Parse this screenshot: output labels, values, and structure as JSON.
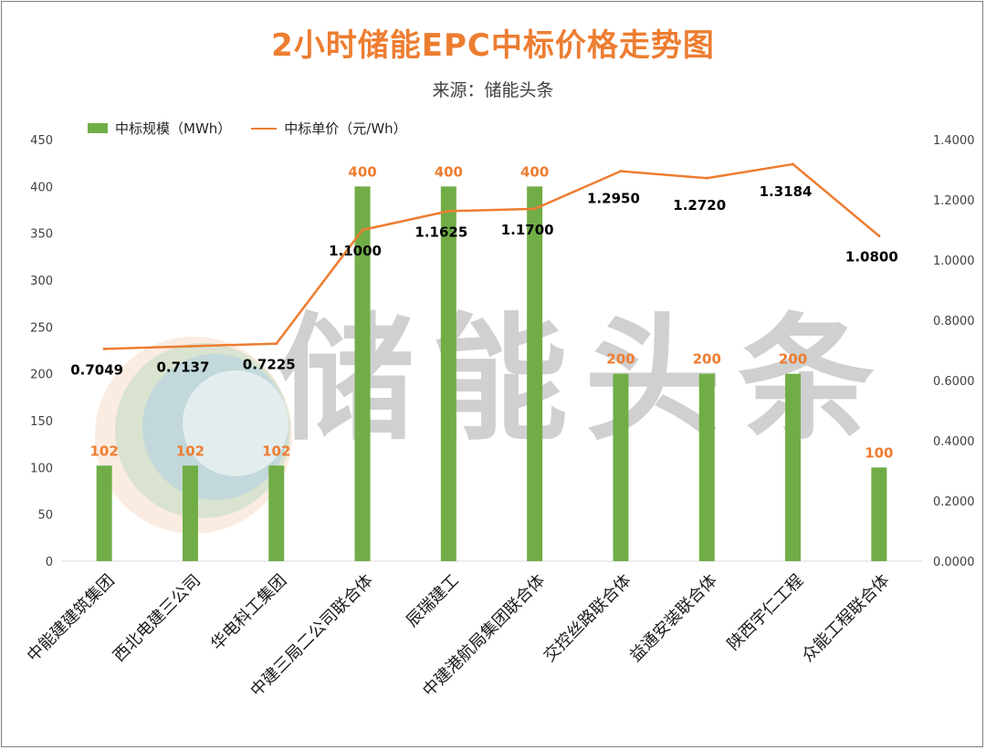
{
  "title": "2小时储能EPC中标价格走势图",
  "subtitle": "来源：储能头条",
  "watermark": "储能头条",
  "colors": {
    "bar": "#70AD47",
    "line": "#ED7D31",
    "title": "#ED7D31"
  },
  "legend": {
    "bar": "中标规模（MWh）",
    "line": "中标单价（元/Wh）"
  },
  "chart_data": {
    "type": "bar",
    "categories": [
      "中能建建筑集团",
      "西北电建三公司",
      "华电科工集团",
      "中建三局二公司联合体",
      "辰瑞建工",
      "中建港航局集团联合体",
      "交控丝路联合体",
      "益通安装联合体",
      "陕西宇仁工程",
      "众能工程联合体"
    ],
    "series": [
      {
        "name": "中标规模（MWh）",
        "type": "bar",
        "axis": "left",
        "values": [
          102,
          102,
          102,
          400,
          400,
          400,
          200,
          200,
          200,
          100
        ],
        "labels": [
          "102",
          "102",
          "102",
          "400",
          "400",
          "400",
          "200",
          "200",
          "200",
          "100"
        ]
      },
      {
        "name": "中标单价（元/Wh）",
        "type": "line",
        "axis": "right",
        "values": [
          0.7049,
          0.7137,
          0.7225,
          1.1,
          1.1625,
          1.17,
          1.295,
          1.272,
          1.3184,
          1.08
        ],
        "labels": [
          "0.7049",
          "0.7137",
          "0.7225",
          "1.1000",
          "1.1625",
          "1.1700",
          "1.2950",
          "1.2720",
          "1.3184",
          "1.0800"
        ]
      }
    ],
    "y_left": {
      "min": 0,
      "max": 450,
      "step": 50,
      "ticks": [
        "0",
        "50",
        "100",
        "150",
        "200",
        "250",
        "300",
        "350",
        "400",
        "450"
      ]
    },
    "y_right": {
      "min": 0,
      "max": 1.4,
      "step": 0.2,
      "ticks": [
        "0.0000",
        "0.2000",
        "0.4000",
        "0.6000",
        "0.8000",
        "1.0000",
        "1.2000",
        "1.4000"
      ]
    },
    "grid": false,
    "legend_position": "top-left"
  }
}
